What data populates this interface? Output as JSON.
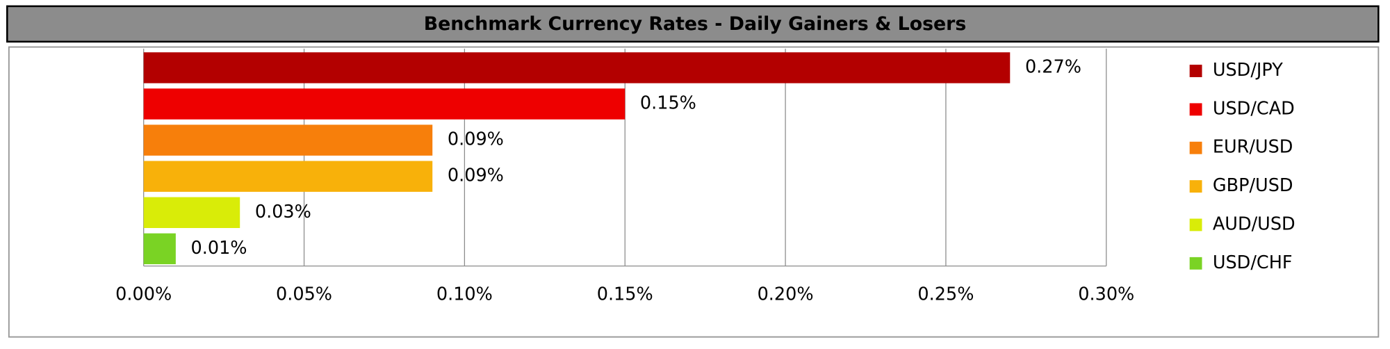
{
  "chart_data": {
    "type": "bar",
    "orientation": "horizontal",
    "title": "Benchmark Currency Rates - Daily Gainers & Losers",
    "series": [
      {
        "name": "USD/JPY",
        "color": "#b30000",
        "values": [
          0.27
        ],
        "value_labels": [
          "0.27%"
        ]
      },
      {
        "name": "USD/CAD",
        "color": "#ee0000",
        "values": [
          0.15
        ],
        "value_labels": [
          "0.15%"
        ]
      },
      {
        "name": "EUR/USD",
        "color": "#f77f0b",
        "values": [
          0.09
        ],
        "value_labels": [
          "0.09%"
        ]
      },
      {
        "name": "GBP/USD",
        "color": "#f8b10a",
        "values": [
          0.09
        ],
        "value_labels": [
          "0.09%"
        ]
      },
      {
        "name": "AUD/USD",
        "color": "#d9ec08",
        "values": [
          0.03
        ],
        "value_labels": [
          "0.03%"
        ]
      },
      {
        "name": "USD/CHF",
        "color": "#7ad324",
        "values": [
          0.01
        ],
        "value_labels": [
          "0.01%"
        ]
      }
    ],
    "xlim": [
      0,
      0.3
    ],
    "xticks": [
      {
        "value": 0,
        "label": "0.00%"
      },
      {
        "value": 0.05,
        "label": "0.05%"
      },
      {
        "value": 0.1,
        "label": "0.10%"
      },
      {
        "value": 0.15,
        "label": "0.15%"
      },
      {
        "value": 0.2,
        "label": "0.20%"
      },
      {
        "value": 0.25,
        "label": "0.25%"
      },
      {
        "value": 0.3,
        "label": "0.30%"
      }
    ],
    "grid": true,
    "legend": "right"
  }
}
